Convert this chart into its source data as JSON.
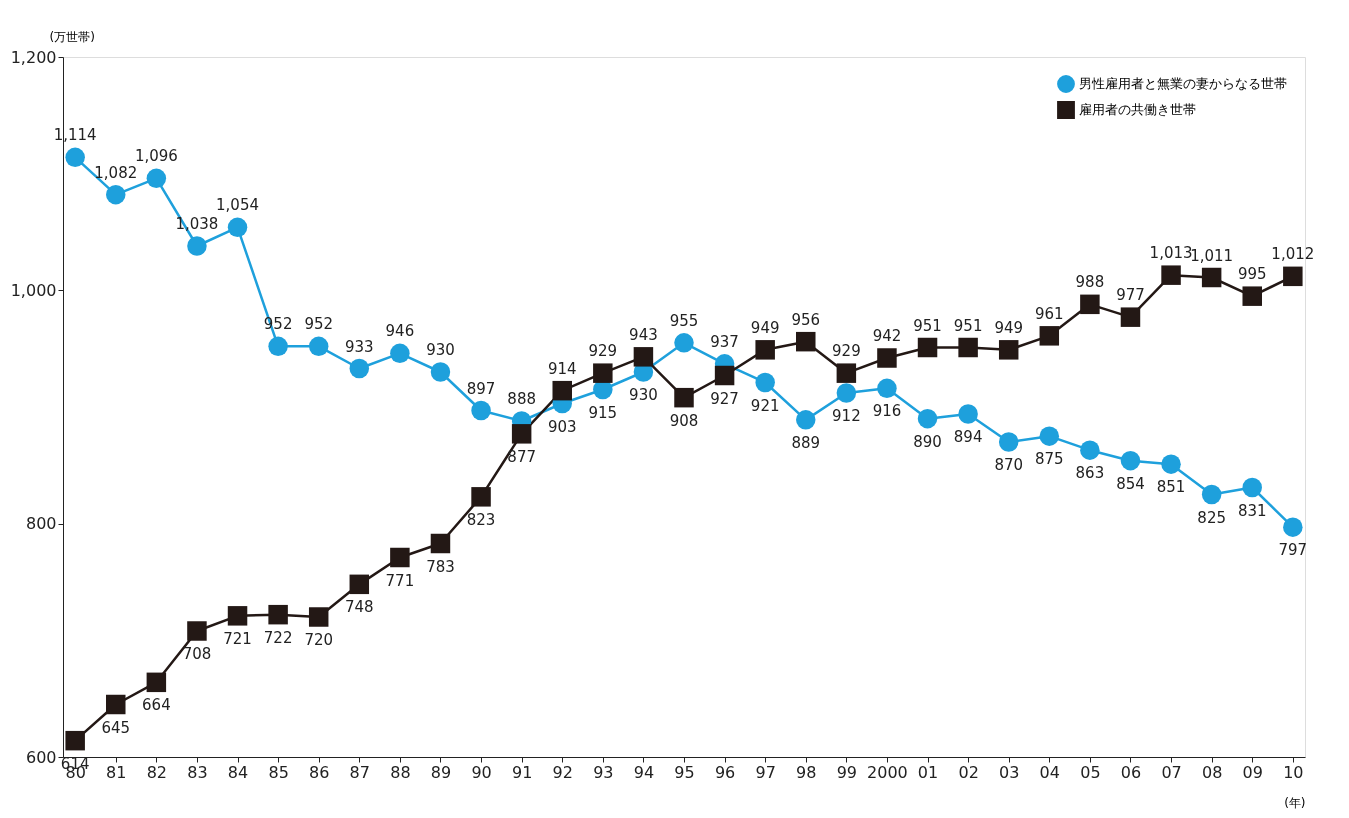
{
  "chart_data": {
    "type": "line",
    "xlabel": "(年)",
    "ylabel": "(万世帯)",
    "categories": [
      "80",
      "81",
      "82",
      "83",
      "84",
      "85",
      "86",
      "87",
      "88",
      "89",
      "90",
      "91",
      "92",
      "93",
      "94",
      "95",
      "96",
      "97",
      "98",
      "99",
      "2000",
      "01",
      "02",
      "03",
      "04",
      "05",
      "06",
      "07",
      "08",
      "09",
      "10"
    ],
    "series": [
      {
        "name": "男性雇用者と無業の妻からなる世帯",
        "color": "#1ea0dc",
        "marker": "circle",
        "values": [
          1114,
          1082,
          1096,
          1038,
          1054,
          952,
          952,
          933,
          946,
          930,
          897,
          888,
          903,
          915,
          930,
          955,
          937,
          921,
          889,
          912,
          916,
          890,
          894,
          870,
          875,
          863,
          854,
          851,
          825,
          831,
          797
        ],
        "value_labels": [
          "1,114",
          "1,082",
          "1,096",
          "1,038",
          "1,054",
          "952",
          "952",
          "933",
          "946",
          "930",
          "897",
          "888",
          "903",
          "915",
          "930",
          "955",
          "937",
          "921",
          "889",
          "912",
          "916",
          "890",
          "894",
          "870",
          "875",
          "863",
          "854",
          "851",
          "825",
          "831",
          "797"
        ]
      },
      {
        "name": "雇用者の共働き世帯",
        "color": "#231815",
        "marker": "square",
        "values": [
          614,
          645,
          664,
          708,
          721,
          722,
          720,
          748,
          771,
          783,
          823,
          877,
          914,
          929,
          943,
          908,
          927,
          949,
          956,
          929,
          942,
          951,
          951,
          949,
          961,
          988,
          977,
          1013,
          1011,
          995,
          1012
        ],
        "value_labels": [
          "614",
          "645",
          "664",
          "708",
          "721",
          "722",
          "720",
          "748",
          "771",
          "783",
          "823",
          "877",
          "914",
          "929",
          "943",
          "908",
          "927",
          "949",
          "956",
          "929",
          "942",
          "951",
          "951",
          "949",
          "961",
          "988",
          "977",
          "1,013",
          "1,011",
          "995",
          "1,012"
        ]
      }
    ],
    "ylim": [
      600,
      1200
    ],
    "yticks": [
      600,
      800,
      {
        "value": 1000,
        "label": "1,000"
      },
      {
        "value": 1200,
        "label": "1,200"
      }
    ],
    "grid": false,
    "legend": "top right",
    "line_style": "solid"
  }
}
